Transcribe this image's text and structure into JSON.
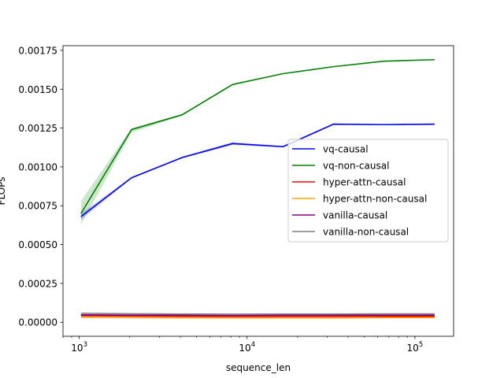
{
  "chart_data": {
    "type": "line",
    "title": "",
    "xlabel": "sequence_len",
    "ylabel": "FLOPs",
    "xscale": "log",
    "xlim": [
      800,
      170000
    ],
    "ylim": [
      -9e-05,
      0.00178
    ],
    "xticks": [
      {
        "value": 1000,
        "base": "10",
        "exp": "3"
      },
      {
        "value": 10000,
        "base": "10",
        "exp": "4"
      },
      {
        "value": 100000,
        "base": "10",
        "exp": "5"
      }
    ],
    "yticks": [
      {
        "value": 0.0,
        "label": "0.00000"
      },
      {
        "value": 0.00025,
        "label": "0.00025"
      },
      {
        "value": 0.0005,
        "label": "0.00050"
      },
      {
        "value": 0.00075,
        "label": "0.00075"
      },
      {
        "value": 0.001,
        "label": "0.00100"
      },
      {
        "value": 0.00125,
        "label": "0.00125"
      },
      {
        "value": 0.0015,
        "label": "0.00150"
      },
      {
        "value": 0.00175,
        "label": "0.00175"
      }
    ],
    "x": [
      1024,
      2048,
      4096,
      8192,
      16384,
      32768,
      65536,
      131072
    ],
    "legend_position": "center-right",
    "series": [
      {
        "name": "vq-causal",
        "color": "#0000ff",
        "values": [
          0.00068,
          0.00093,
          0.00106,
          0.00115,
          0.00113,
          0.001275,
          0.001272,
          0.001275
        ],
        "band_lower": [
          0.00066,
          0.000925,
          0.001055,
          0.00114,
          0.001125,
          0.00127,
          0.00127,
          0.00127
        ],
        "band_upper": [
          0.0007,
          0.000935,
          0.001065,
          0.00116,
          0.001135,
          0.00128,
          0.001275,
          0.00128
        ]
      },
      {
        "name": "vq-non-causal",
        "color": "#008000",
        "values": [
          0.0007,
          0.00124,
          0.001335,
          0.00153,
          0.0016,
          0.001645,
          0.00168,
          0.00169
        ],
        "band_lower": [
          0.00063,
          0.00122,
          0.00133,
          0.001525,
          0.0016,
          0.001645,
          0.00168,
          0.00169
        ],
        "band_upper": [
          0.00078,
          0.00125,
          0.00134,
          0.001535,
          0.0016,
          0.001645,
          0.00168,
          0.00169
        ]
      },
      {
        "name": "hyper-attn-causal",
        "color": "#ff0000",
        "values": [
          4.2e-05,
          4e-05,
          3.8e-05,
          3.7e-05,
          3.7e-05,
          3.7e-05,
          3.8e-05,
          3.8e-05
        ]
      },
      {
        "name": "hyper-attn-non-causal",
        "color": "#ffa500",
        "values": [
          3.2e-05,
          3e-05,
          2.9e-05,
          2.8e-05,
          2.8e-05,
          2.8e-05,
          3e-05,
          3e-05
        ]
      },
      {
        "name": "vanilla-causal",
        "color": "#800080",
        "values": [
          4.8e-05,
          4.6e-05,
          4.5e-05,
          4.4e-05,
          4.5e-05,
          4.5e-05,
          4.6e-05,
          4.6e-05
        ]
      },
      {
        "name": "vanilla-non-causal",
        "color": "#808080",
        "values": [
          5.8e-05,
          5.5e-05,
          5.3e-05,
          5.2e-05,
          5.3e-05,
          5.3e-05,
          5.4e-05,
          5.4e-05
        ]
      }
    ]
  }
}
